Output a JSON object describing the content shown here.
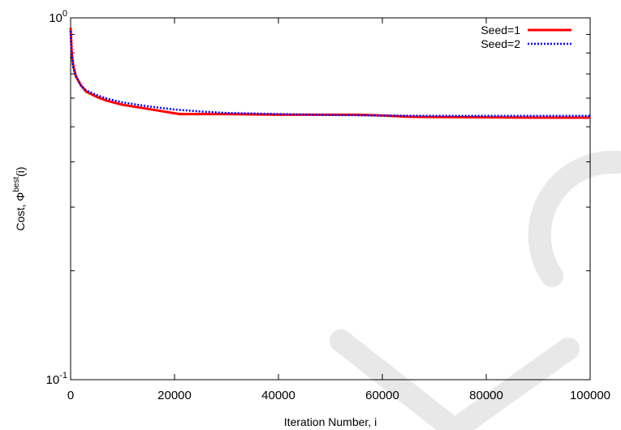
{
  "chart_data": {
    "type": "line",
    "xlabel": "Iteration Number, i",
    "ylabel": {
      "prefix": "Cost, Φ",
      "superscript": "best",
      "suffix": "(i)"
    },
    "xlim": [
      0,
      100000
    ],
    "ylim": [
      0.1,
      1
    ],
    "y_scale": "log",
    "grid": false,
    "legend_position": "top-right",
    "x_ticks": [
      0,
      20000,
      40000,
      60000,
      80000,
      100000
    ],
    "x_tick_labels": [
      "0",
      "20000",
      "40000",
      "60000",
      "80000",
      "100000"
    ],
    "y_ticks": [
      {
        "value": 0.1,
        "base": "10",
        "exponent": "-1"
      },
      {
        "value": 1,
        "base": "10",
        "exponent": "0"
      }
    ],
    "series": [
      {
        "name": "Seed=1",
        "color": "#ff0000",
        "style": "solid",
        "x": [
          0,
          200,
          500,
          1000,
          2000,
          3000,
          5000,
          7000,
          10000,
          15000,
          20000,
          21000,
          25000,
          30000,
          40000,
          50000,
          55000,
          60000,
          65000,
          70000,
          80000,
          90000,
          100000
        ],
        "y": [
          0.94,
          0.8,
          0.74,
          0.69,
          0.65,
          0.625,
          0.605,
          0.59,
          0.575,
          0.56,
          0.545,
          0.542,
          0.542,
          0.542,
          0.54,
          0.54,
          0.54,
          0.537,
          0.533,
          0.532,
          0.531,
          0.53,
          0.53
        ]
      },
      {
        "name": "Seed=2",
        "color": "#0000ff",
        "style": "dotted",
        "x": [
          0,
          200,
          500,
          1000,
          2000,
          3000,
          5000,
          7000,
          10000,
          15000,
          20000,
          25000,
          30000,
          40000,
          50000,
          60000,
          70000,
          80000,
          90000,
          100000
        ],
        "y": [
          0.92,
          0.79,
          0.73,
          0.69,
          0.65,
          0.63,
          0.612,
          0.598,
          0.584,
          0.569,
          0.558,
          0.551,
          0.546,
          0.542,
          0.539,
          0.537,
          0.536,
          0.536,
          0.536,
          0.536
        ]
      }
    ]
  }
}
